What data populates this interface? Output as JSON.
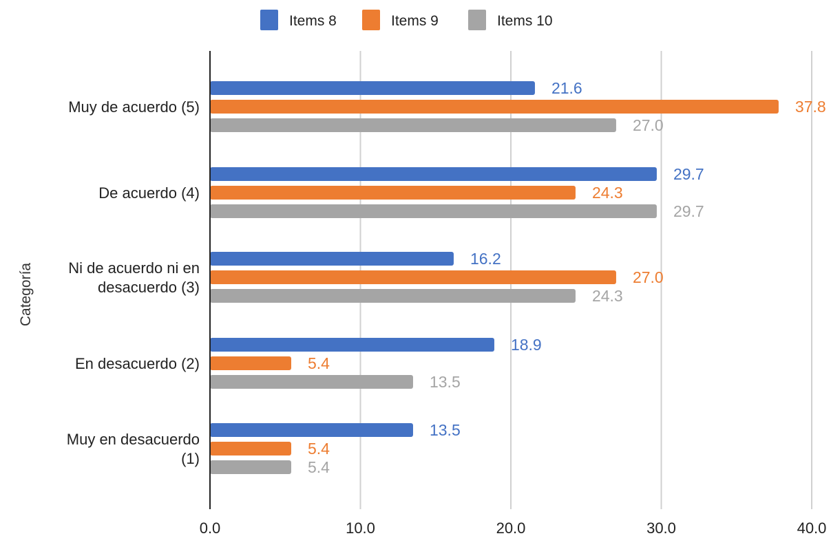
{
  "chart_data": {
    "type": "bar",
    "orientation": "horizontal",
    "title": "",
    "xlabel": "",
    "ylabel": "Categoría",
    "xlim": [
      0,
      40
    ],
    "xticks": [
      "0.0",
      "10.0",
      "20.0",
      "30.0",
      "40.0"
    ],
    "grid": true,
    "legend_position": "top",
    "categories": [
      "Muy de acuerdo (5)",
      "De acuerdo (4)",
      "Ni de acuerdo ni en desacuerdo (3)",
      "En desacuerdo (2)",
      "Muy en desacuerdo (1)"
    ],
    "category_lines": [
      [
        "Muy de acuerdo (5)"
      ],
      [
        "De acuerdo (4)"
      ],
      [
        "Ni de acuerdo ni en",
        "desacuerdo (3)"
      ],
      [
        "En desacuerdo (2)"
      ],
      [
        "Muy en desacuerdo",
        "(1)"
      ]
    ],
    "series": [
      {
        "name": "Items 8",
        "color": "#4472C4",
        "values": [
          21.6,
          29.7,
          16.2,
          18.9,
          13.5
        ],
        "labels": [
          "21.6",
          "29.7",
          "16.2",
          "18.9",
          "13.5"
        ]
      },
      {
        "name": "Items 9",
        "color": "#ED7D31",
        "values": [
          37.8,
          24.3,
          27.0,
          5.4,
          5.4
        ],
        "labels": [
          "37.8",
          "24.3",
          "27.0",
          "5.4",
          "5.4"
        ]
      },
      {
        "name": "Items 10",
        "color": "#A5A5A5",
        "values": [
          27.0,
          29.7,
          24.3,
          13.5,
          5.4
        ],
        "labels": [
          "27.0",
          "29.7",
          "24.3",
          "13.5",
          "5.4"
        ]
      }
    ]
  }
}
